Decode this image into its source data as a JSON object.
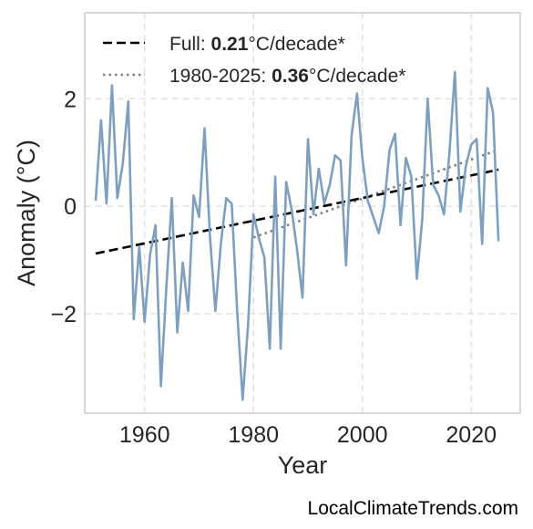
{
  "watermark": "LocalClimateTrends.com",
  "chart_data": {
    "type": "line",
    "xlabel": "Year",
    "ylabel": "Anomaly (°C)",
    "xlim": [
      1949,
      2029
    ],
    "ylim": [
      -3.85,
      3.6
    ],
    "x_ticks": [
      1960,
      1980,
      2000,
      2020
    ],
    "y_ticks": [
      -2,
      0,
      2
    ],
    "y_tick_labels": [
      "−2",
      "0",
      "2"
    ],
    "grid": true,
    "legend_position": "top-left",
    "colors": {
      "series": "#7f9fbf",
      "full_trend": "#000000",
      "recent_trend": "#808080",
      "grid": "#dddddd",
      "frame": "#cccccc"
    },
    "series": [
      {
        "x": [
          1951,
          1952,
          1953,
          1954,
          1955,
          1956,
          1957,
          1958,
          1959,
          1960,
          1961,
          1962,
          1963,
          1964,
          1965,
          1966,
          1967,
          1968,
          1969,
          1970,
          1971,
          1972,
          1973,
          1974,
          1975,
          1976,
          1977,
          1978,
          1979,
          1980,
          1981,
          1982,
          1983,
          1984,
          1985,
          1986,
          1987,
          1988,
          1989,
          1990,
          1991,
          1992,
          1993,
          1994,
          1995,
          1996,
          1997,
          1998,
          1999,
          2000,
          2001,
          2002,
          2003,
          2004,
          2005,
          2006,
          2007,
          2008,
          2009,
          2010,
          2011,
          2012,
          2013,
          2014,
          2015,
          2016,
          2017,
          2018,
          2019,
          2020,
          2021,
          2022,
          2023,
          2024,
          2025
        ],
        "values": [
          0.1,
          1.6,
          0.05,
          2.25,
          0.15,
          0.8,
          1.95,
          -2.1,
          -0.75,
          -2.15,
          -0.9,
          -0.35,
          -3.35,
          -1.5,
          0.15,
          -2.35,
          -1.05,
          -1.95,
          0.2,
          -0.2,
          1.45,
          -0.55,
          -1.95,
          -0.7,
          0.15,
          0.05,
          -1.95,
          -3.6,
          -2.2,
          -0.15,
          -0.6,
          -0.95,
          -2.65,
          0.55,
          -2.65,
          0.45,
          -0.05,
          -0.8,
          -1.7,
          1.25,
          -0.15,
          0.7,
          0.05,
          0.4,
          0.95,
          0.85,
          -1.1,
          1.3,
          2.1,
          0.9,
          0.1,
          -0.2,
          -0.5,
          0.0,
          1.05,
          1.35,
          -0.35,
          0.9,
          0.55,
          -1.35,
          -0.25,
          2.0,
          0.4,
          0.2,
          -0.15,
          1.0,
          2.5,
          -0.1,
          0.75,
          1.15,
          1.25,
          -0.7,
          2.2,
          1.75,
          -0.65
        ]
      }
    ],
    "trends": [
      {
        "label_prefix": "Full: ",
        "value": "0.21",
        "unit": "°C/decade*",
        "x": [
          1951,
          2025
        ],
        "y": [
          -0.88,
          0.68
        ],
        "style": "dashed"
      },
      {
        "label_prefix": "1980-2025: ",
        "value": "0.36",
        "unit": "°C/decade*",
        "x": [
          1980,
          2025
        ],
        "y": [
          -0.58,
          1.05
        ],
        "style": "dotted"
      }
    ]
  }
}
